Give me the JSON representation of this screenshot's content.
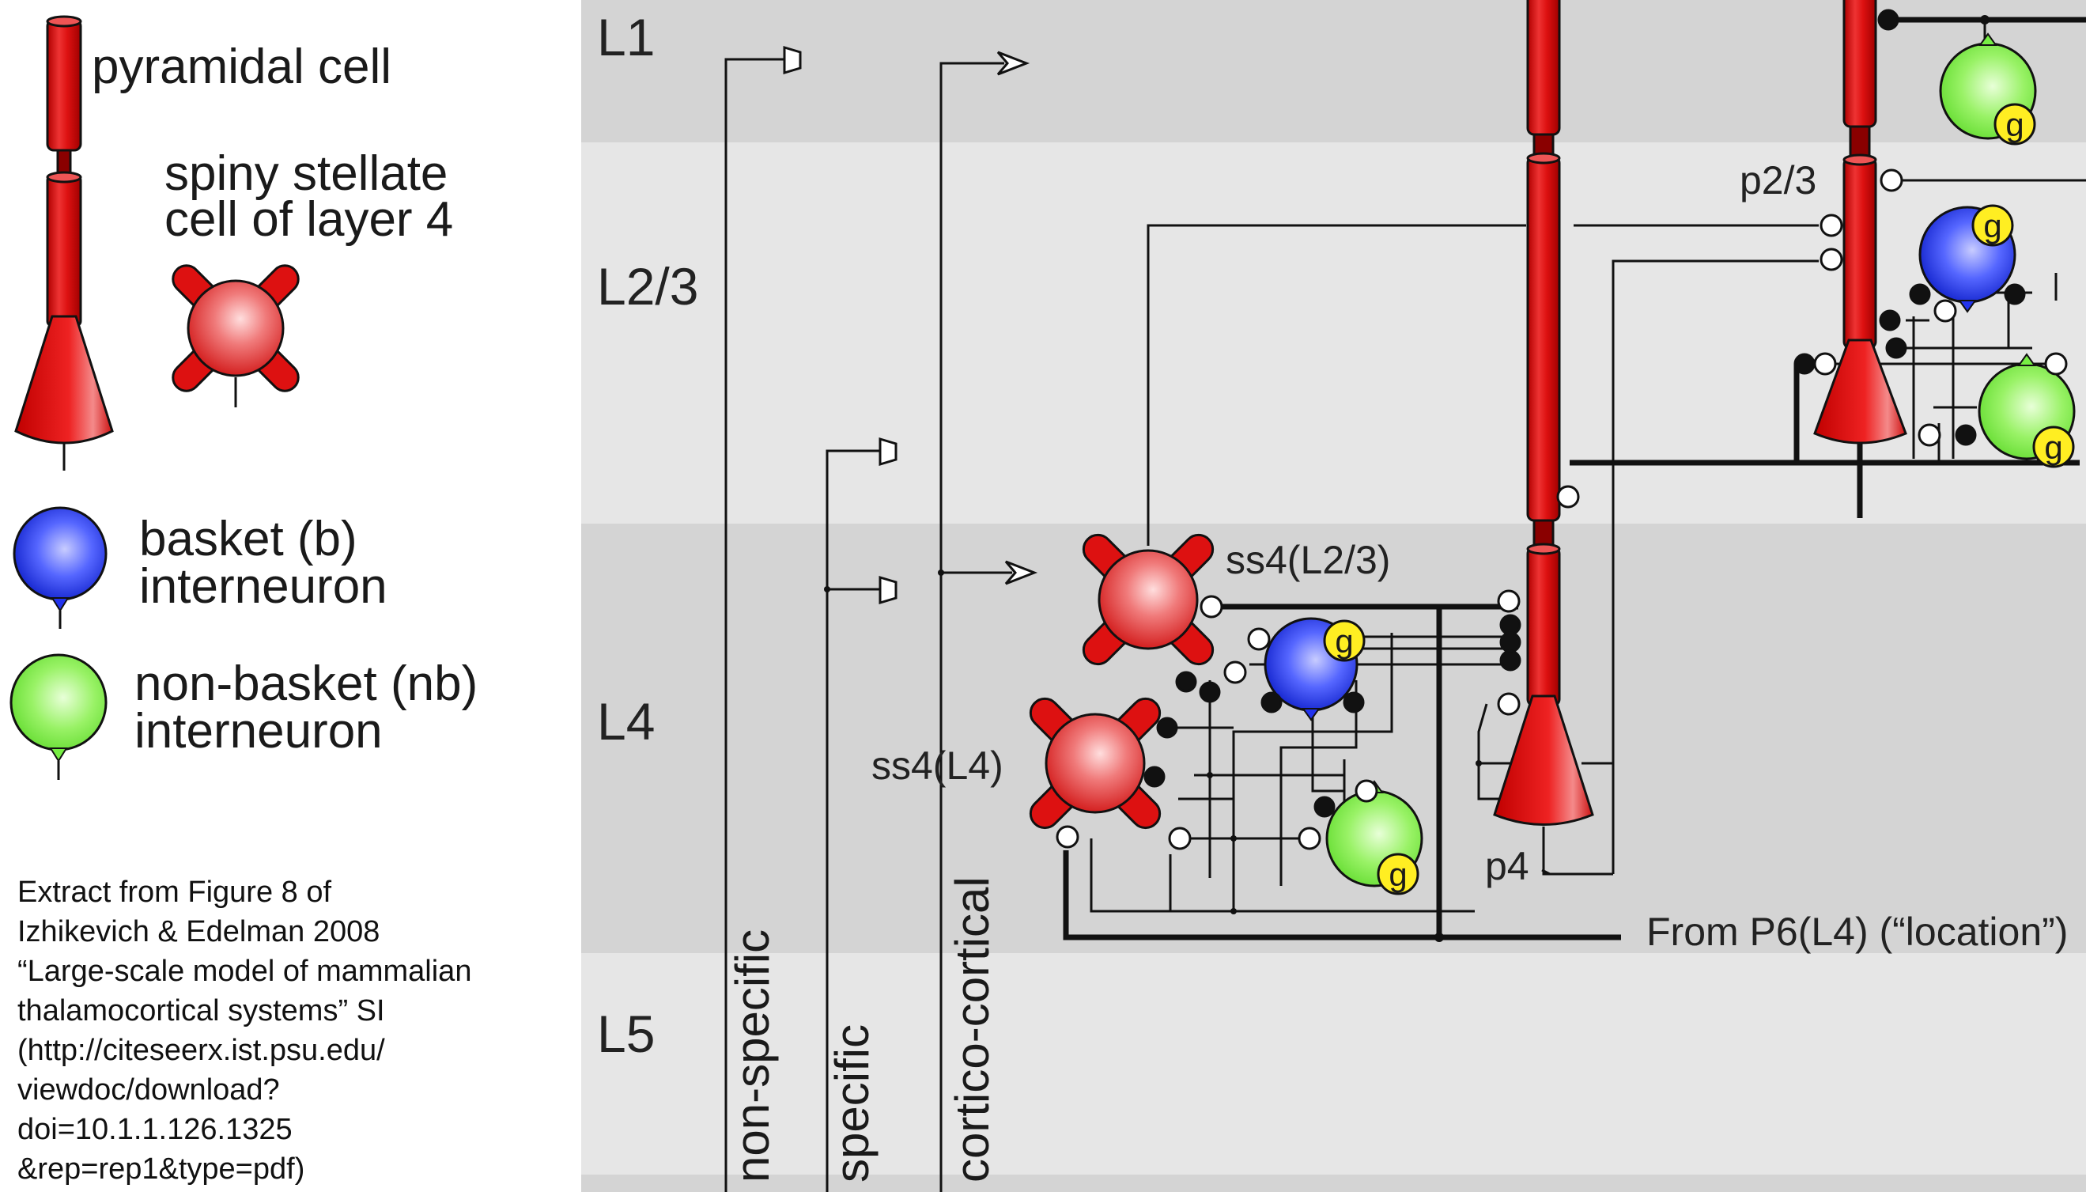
{
  "legend": {
    "pyramidal": "pyramidal cell",
    "spiny_line1": "spiny stellate",
    "spiny_line2": "cell of layer 4",
    "basket_line1": "basket (b)",
    "basket_line2": "interneuron",
    "nonbasket_line1": "non-basket (nb)",
    "nonbasket_line2": "interneuron"
  },
  "layers": {
    "l1": "L1",
    "l23": "L2/3",
    "l4": "L4",
    "l5": "L5"
  },
  "inputs": {
    "nonspecific": "non-specific",
    "specific": "specific",
    "corticocortical": "cortico-cortical"
  },
  "cells": {
    "p23": "p2/3",
    "ss4_l23": "ss4(L2/3)",
    "ss4_l4": "ss4(L4)",
    "p4": "p4",
    "g": "g"
  },
  "from_p6": "From P6(L4) (“location”)",
  "citation": [
    "Extract from Figure 8 of",
    "Izhikevich & Edelman 2008",
    "“Large-scale model of mammalian",
    "thalamocortical systems” SI",
    "(http://citeseerx.ist.psu.edu/",
    "viewdoc/download?",
    "doi=10.1.1.126.1325",
    "&rep=rep1&type=pdf)"
  ],
  "colors": {
    "pyramidal_red": "#dd1111",
    "basket_blue": "#2233ee",
    "nonbasket_green": "#77ee44",
    "gate_yellow": "#ffee22",
    "band_dark": "#d4d4d4",
    "band_light": "#e6e6e6"
  }
}
